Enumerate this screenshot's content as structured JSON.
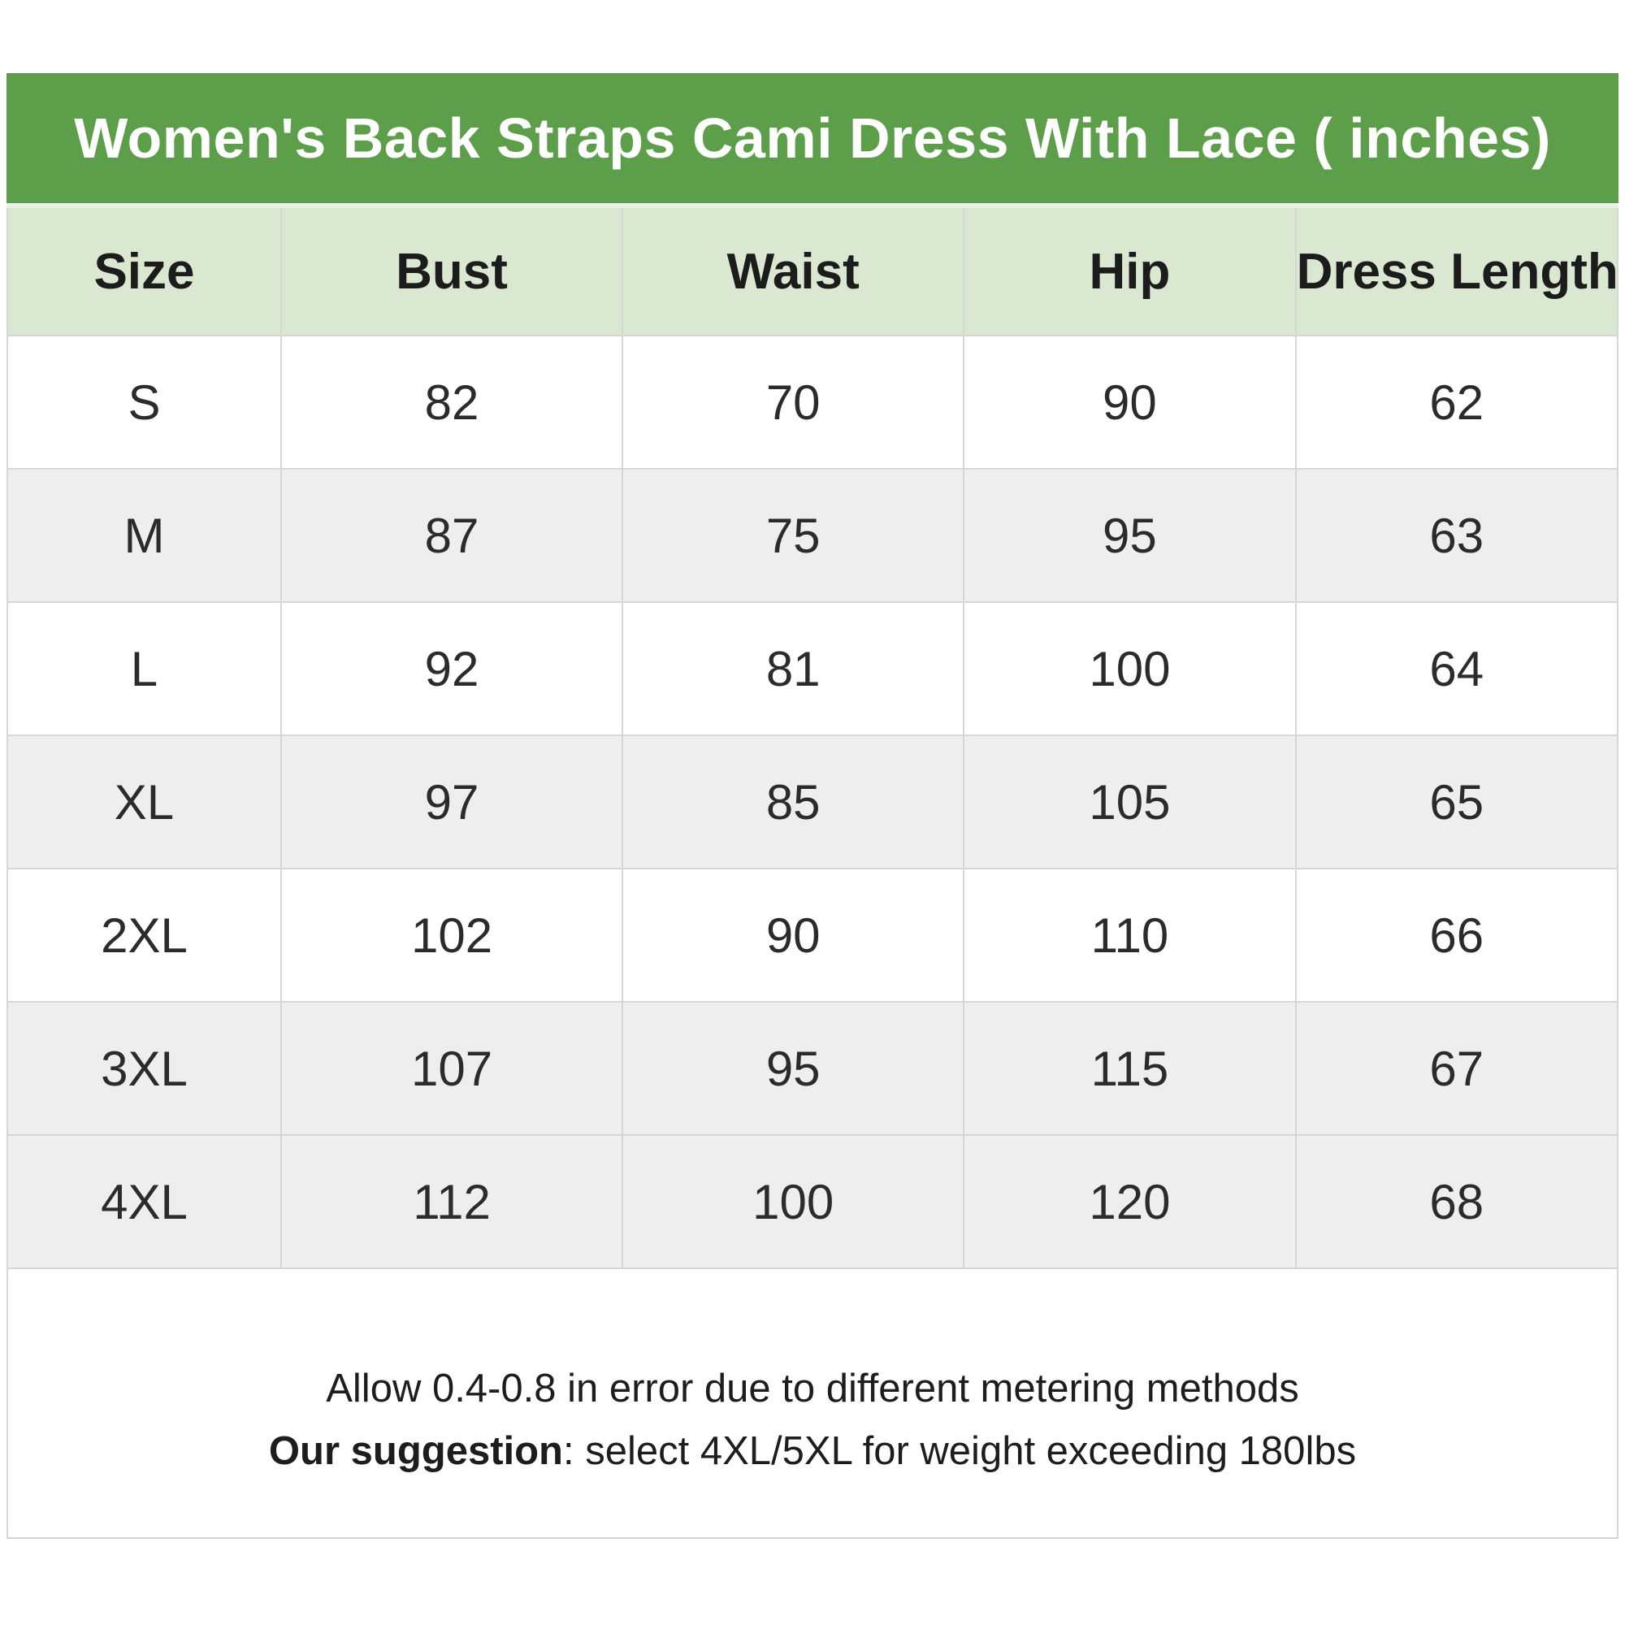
{
  "chart_data": {
    "type": "table",
    "title": "Women's Back Straps Cami Dress With Lace ( inches)",
    "unit": "inches",
    "columns": [
      "Size",
      "Bust",
      "Waist",
      "Hip",
      "Dress Length"
    ],
    "rows": [
      [
        "S",
        "82",
        "70",
        "90",
        "62"
      ],
      [
        "M",
        "87",
        "75",
        "95",
        "63"
      ],
      [
        "L",
        "92",
        "81",
        "100",
        "64"
      ],
      [
        "XL",
        "97",
        "85",
        "105",
        "65"
      ],
      [
        "2XL",
        "102",
        "90",
        "110",
        "66"
      ],
      [
        "3XL",
        "107",
        "95",
        "115",
        "67"
      ],
      [
        "4XL",
        "112",
        "100",
        "120",
        "68"
      ]
    ],
    "notes": [
      "Allow 0.4-0.8 in error due to different metering methods",
      "Our suggestion: select 4XL/5XL for weight exceeding 180lbs"
    ]
  },
  "footer": {
    "line1": "Allow 0.4-0.8 in error due to different metering methods",
    "line2_bold": "Our suggestion",
    "line2_rest": ": select 4XL/5XL for weight exceeding 180lbs"
  },
  "colors": {
    "header_green": "#5c9e49",
    "header_row_green": "#dae8d1",
    "stripe_gray": "#eeeeee",
    "border_gray": "#d6d6d6",
    "title_text": "#ffffff",
    "body_text": "#2b2b2b"
  }
}
